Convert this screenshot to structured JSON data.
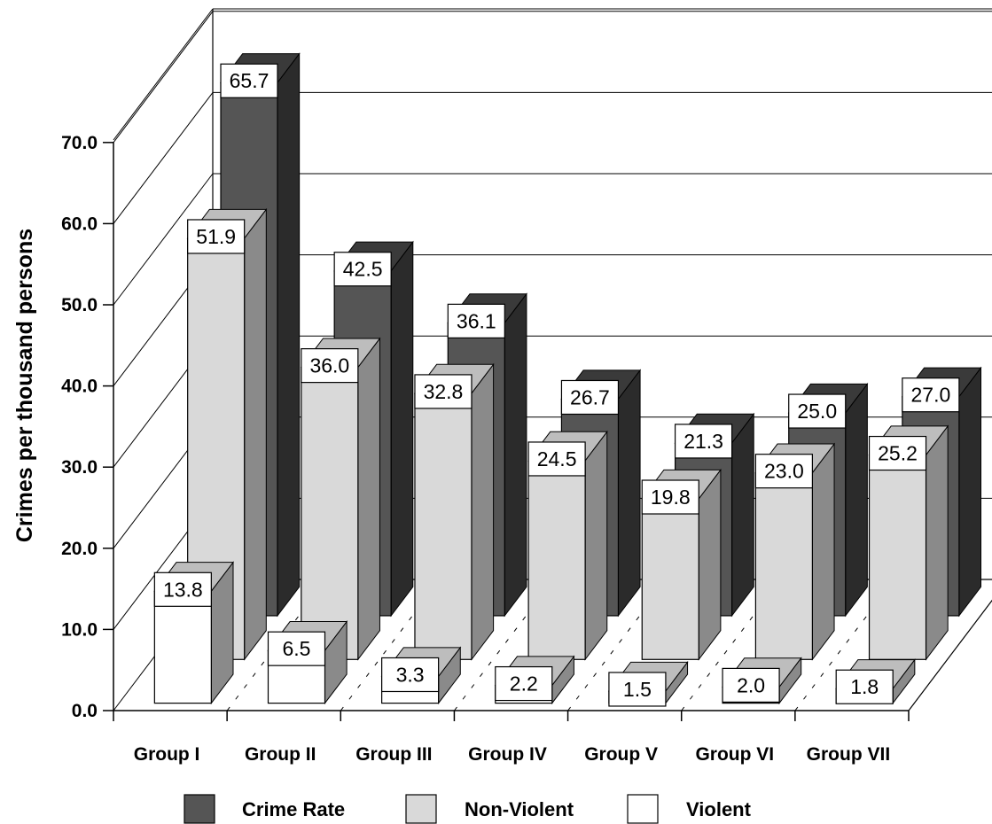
{
  "chart_data": {
    "type": "bar",
    "style": "3d-clustered-column",
    "ylabel": "Crimes per  thousand persons",
    "yticks": [
      "0.0",
      "10.0",
      "20.0",
      "30.0",
      "40.0",
      "50.0",
      "60.0",
      "70.0"
    ],
    "ylim": [
      0,
      70
    ],
    "grid": true,
    "legend_position": "bottom",
    "categories": [
      "Group I",
      "Group II",
      "Group III",
      "Group IV",
      "Group V",
      "Group VI",
      "Group VII"
    ],
    "series": [
      {
        "name": "Crime Rate",
        "color": "#555555",
        "values": [
          65.7,
          42.5,
          36.1,
          26.7,
          21.3,
          25.0,
          27.0
        ],
        "labels": [
          "65.7",
          "42.5",
          "36.1",
          "26.7",
          "21.3",
          "25.0",
          "27.0"
        ]
      },
      {
        "name": "Non-Violent",
        "color": "#d9d9d9",
        "values": [
          51.9,
          36.0,
          32.8,
          24.5,
          19.8,
          23.0,
          25.2
        ],
        "labels": [
          "51.9",
          "36.0",
          "32.8",
          "24.5",
          "19.8",
          "23.0",
          "25.2"
        ]
      },
      {
        "name": "Violent",
        "color": "#ffffff",
        "values": [
          13.8,
          6.5,
          3.3,
          2.2,
          1.5,
          2.0,
          1.8
        ],
        "labels": [
          "13.8",
          "6.5",
          "3.3",
          "2.2",
          "1.5",
          "2.0",
          "1.8"
        ]
      }
    ]
  }
}
